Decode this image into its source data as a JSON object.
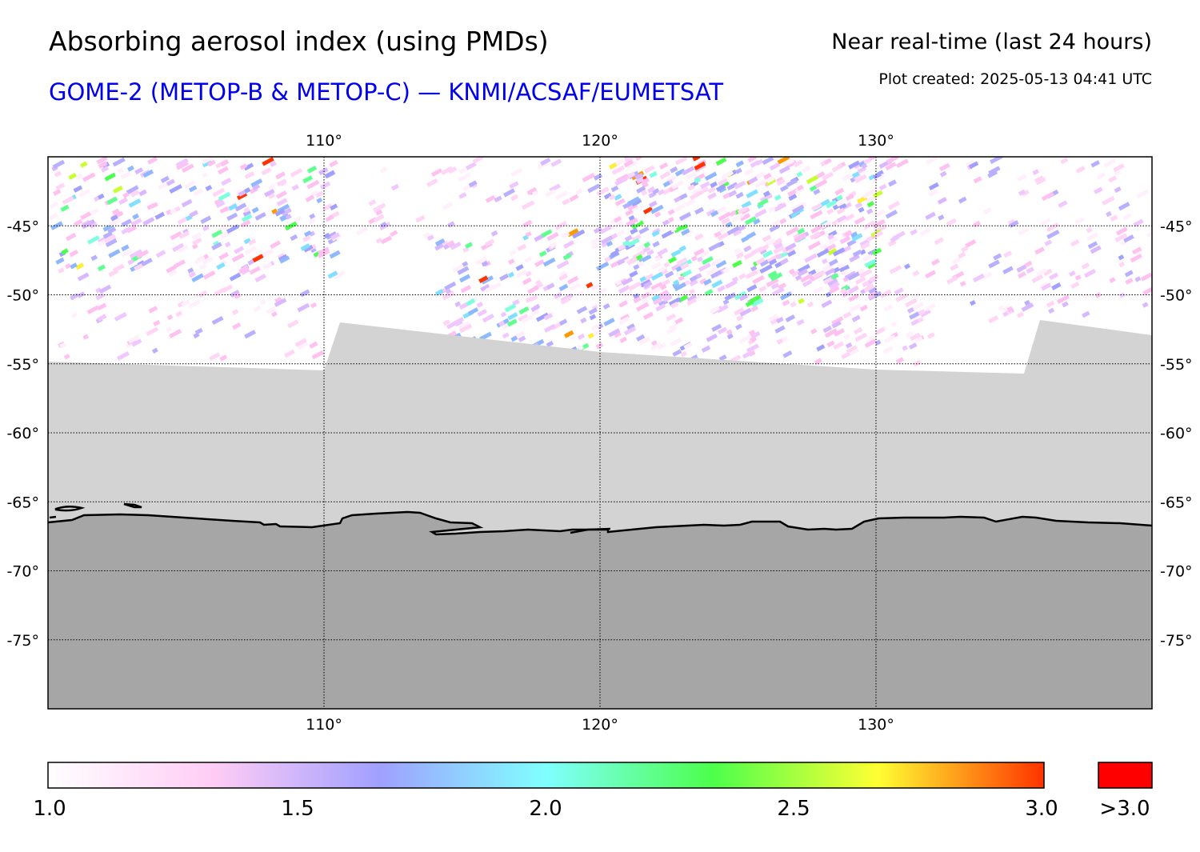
{
  "header": {
    "title": "Absorbing aerosol index (using PMDs)",
    "subtitle": "GOME-2 (METOP-B & METOP-C) — KNMI/ACSAF/EUMETSAT",
    "timeliness": "Near real-time (last 24 hours)",
    "created": "Plot created: 2025-05-13 04:41 UTC"
  },
  "colors": {
    "subtitle": "#0000ee",
    "no_data": "#d3d3d3",
    "land": "#a6a6a6",
    "coastline": "#000000",
    "gridline": "#000000"
  },
  "map": {
    "lon_range": [
      100,
      140
    ],
    "lat_range": [
      -80,
      -40
    ],
    "lon_ticks": [
      {
        "value": 110,
        "label": "110°"
      },
      {
        "value": 120,
        "label": "120°"
      },
      {
        "value": 130,
        "label": "130°"
      }
    ],
    "lat_ticks": [
      {
        "value": -45,
        "label": "-45°"
      },
      {
        "value": -50,
        "label": "-50°"
      },
      {
        "value": -55,
        "label": "-55°"
      },
      {
        "value": -60,
        "label": "-60°"
      },
      {
        "value": -65,
        "label": "-65°"
      },
      {
        "value": -70,
        "label": "-70°"
      },
      {
        "value": -75,
        "label": "-75°"
      }
    ]
  },
  "colorbar": {
    "range": [
      1.0,
      3.0
    ],
    "ticks": [
      "1.0",
      "1.5",
      "2.0",
      "2.5",
      "3.0"
    ],
    "overflow_label": ">3.0",
    "overflow_color": "#ff0000",
    "stops": [
      "#ffffff",
      "#ffccf5",
      "#a0a0ff",
      "#80ffff",
      "#4cff4c",
      "#ffff33",
      "#ff3300"
    ]
  }
}
